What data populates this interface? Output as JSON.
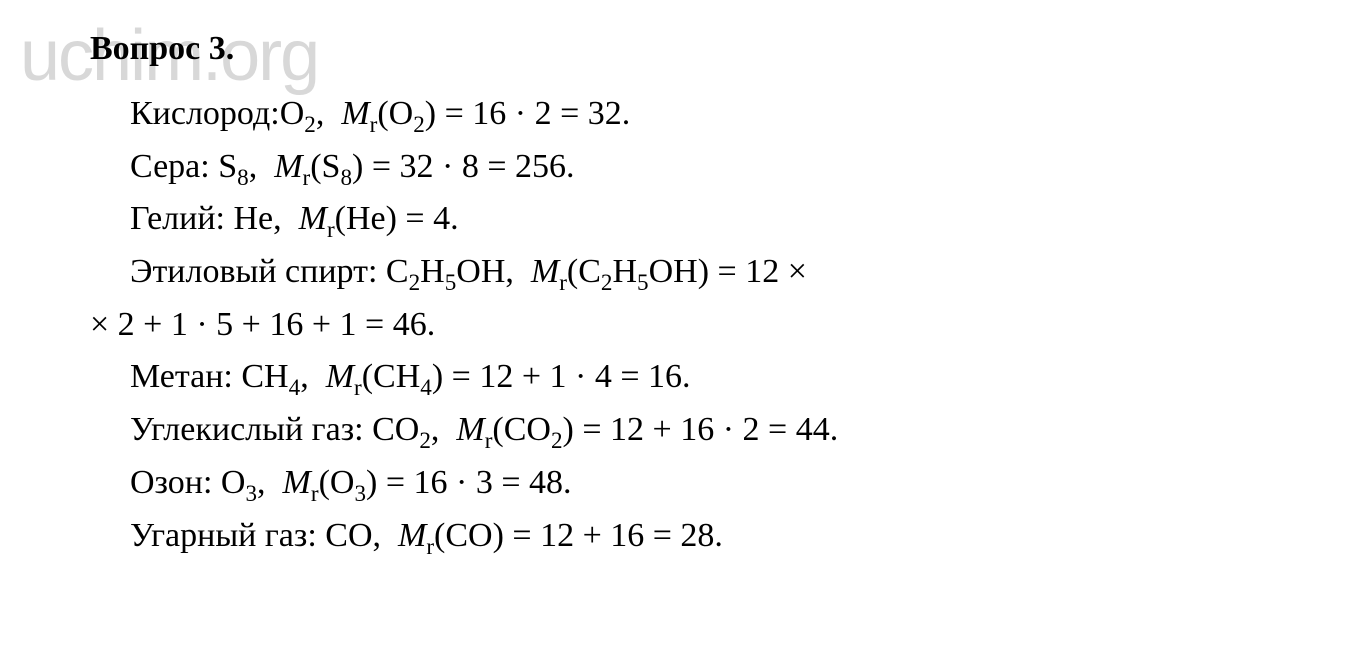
{
  "watermark": "uchim.org",
  "title": "Вопрос 3.",
  "lines": {
    "oxygen": "Кислород:O₂,  𝑀ᵣ(O₂) = 16 · 2 = 32.",
    "sulfur": "Сера: S₈,  𝑀ᵣ(S₈) = 32 · 8 = 256.",
    "helium": "Гелий: He,  𝑀ᵣ(He) = 4.",
    "ethanol_a": "Этиловый спирт: C₂H₅OH,  𝑀ᵣ(C₂H₅OH) = 12 ×",
    "ethanol_b": "× 2 + 1 · 5 + 16 + 1 = 46.",
    "methane": "Метан: CH₄,  𝑀ᵣ(CH₄) = 12 + 1 · 4 = 16.",
    "co2": "Углекислый газ: CO₂,  𝑀ᵣ(CO₂) = 12 + 16 · 2 = 44.",
    "ozone": "Озон: O₃,  𝑀ᵣ(O₃) = 16 · 3 = 48.",
    "co": "Угарный газ: CO,  𝑀ᵣ(CO) = 12 + 16 = 28."
  },
  "style": {
    "background_color": "#ffffff",
    "text_color": "#000000",
    "watermark_color": "#d8d8d8",
    "font_family": "Times New Roman",
    "title_fontsize": 34,
    "body_fontsize": 34,
    "title_weight": "bold",
    "line_height": 1.55,
    "watermark_fontsize": 72
  }
}
